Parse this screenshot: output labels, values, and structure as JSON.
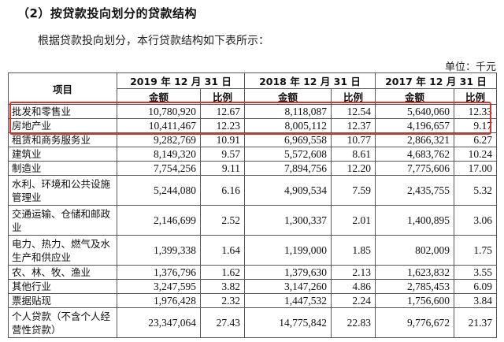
{
  "heading": "（2）按贷款投向划分的贷款结构",
  "intro": "根据贷款投向划分，本行贷款结构如下表所示：",
  "unit": "单位：千元",
  "table": {
    "item_header": "项目",
    "periods": [
      "2019 年 12 月 31 日",
      "2018 年 12 月 31 日",
      "2017 年 12 月 31 日"
    ],
    "amount_header": "金额",
    "ratio_header": "比例",
    "rows": [
      {
        "name": "批发和零售业",
        "v": [
          "10,780,920",
          "12.67",
          "8,118,087",
          "12.54",
          "5,640,060",
          "12.33"
        ]
      },
      {
        "name": "房地产业",
        "v": [
          "10,411,467",
          "12.23",
          "8,005,112",
          "12.37",
          "4,196,657",
          "9.17"
        ]
      },
      {
        "name": "租赁和商务服务业",
        "v": [
          "9,282,769",
          "10.91",
          "6,969,558",
          "10.77",
          "2,866,321",
          "6.27"
        ]
      },
      {
        "name": "建筑业",
        "v": [
          "8,149,320",
          "9.57",
          "5,572,608",
          "8.61",
          "4,683,762",
          "10.24"
        ]
      },
      {
        "name": "制造业",
        "v": [
          "7,754,256",
          "9.11",
          "7,894,756",
          "12.20",
          "7,775,606",
          "17.00"
        ]
      },
      {
        "name": "水利、环境和公共设施管理业",
        "v": [
          "5,244,080",
          "6.16",
          "4,909,534",
          "7.59",
          "2,435,755",
          "5.32"
        ]
      },
      {
        "name": "交通运输、仓储和邮政业",
        "v": [
          "2,146,699",
          "2.52",
          "1,300,337",
          "2.01",
          "1,400,895",
          "3.06"
        ]
      },
      {
        "name": "电力、热力、燃气及水生产和供应业",
        "v": [
          "1,399,338",
          "1.64",
          "1,199,000",
          "1.85",
          "802,009",
          "1.75"
        ]
      },
      {
        "name": "农、林、牧、渔业",
        "v": [
          "1,376,796",
          "1.62",
          "1,379,630",
          "2.13",
          "1,623,832",
          "3.55"
        ]
      },
      {
        "name": "其他行业",
        "v": [
          "3,247,595",
          "3.82",
          "3,147,260",
          "4.86",
          "2,785,453",
          "6.09"
        ]
      },
      {
        "name": "票据贴现",
        "v": [
          "1,976,428",
          "2.32",
          "1,447,532",
          "2.24",
          "1,756,600",
          "3.84"
        ]
      },
      {
        "name": "个人贷款（不含个人经营性贷款）",
        "v": [
          "23,347,064",
          "27.43",
          "14,775,842",
          "22.83",
          "9,776,672",
          "21.37"
        ]
      }
    ]
  },
  "highlight_color": "#d9342b"
}
